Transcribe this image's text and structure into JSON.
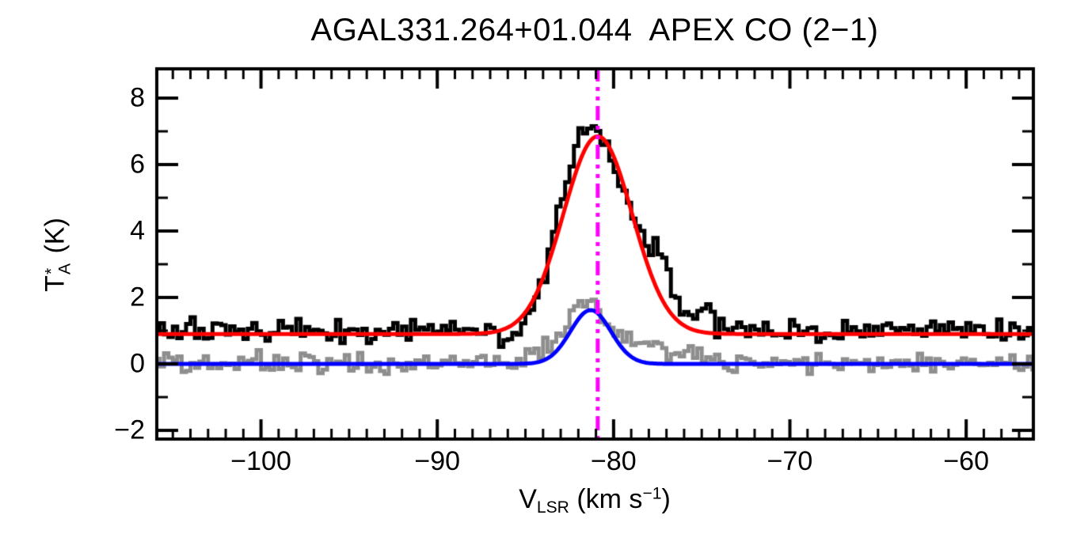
{
  "title": "AGAL331.264+01.044  APEX CO (2−1)",
  "x_axis": {
    "label_v": "V",
    "label_v_sub": "LSR",
    "label_unit_pre": " (km s",
    "label_unit_sup": "−1",
    "label_unit_post": ")"
  },
  "y_axis": {
    "label_t": "T",
    "label_t_sup": "*",
    "label_t_sub": "A",
    "label_unit": " (K)"
  },
  "chart_data": {
    "type": "line",
    "title": "AGAL331.264+01.044  APEX CO (2−1)",
    "xlabel": "V_LSR (km s−1)",
    "ylabel": "T_A* (K)",
    "xlim": [
      -106.0,
      -56.1
    ],
    "ylim": [
      -2.31,
      8.93
    ],
    "grid": false,
    "legend_position": "none",
    "background_color": "#FFFFFF",
    "axis_color": "#000000",
    "x_major_ticks": [
      {
        "value": -100,
        "label": "−100"
      },
      {
        "value": -90,
        "label": "−90"
      },
      {
        "value": -80,
        "label": "−80"
      },
      {
        "value": -70,
        "label": "−70"
      },
      {
        "value": -60,
        "label": "−60"
      }
    ],
    "y_major_ticks": [
      {
        "value": -2,
        "label": "−2"
      },
      {
        "value": 0,
        "label": "0"
      },
      {
        "value": 2,
        "label": "2"
      },
      {
        "value": 4,
        "label": "4"
      },
      {
        "value": 6,
        "label": "6"
      },
      {
        "value": 8,
        "label": "8"
      }
    ],
    "x_minor_tick_step": 1,
    "y_minor_tick_step": 1,
    "channel_width_kms": 0.25,
    "noise_seed": 12345,
    "series": [
      {
        "name": "observed-co-spectrum",
        "style": "histogram",
        "color": "#000000",
        "line_width": 5,
        "baseline_K": 1.0,
        "noise_sigma_K": 0.16,
        "peak_K": 7.3,
        "peak_velocity_kms": -81.1,
        "profile_anchors": [
          [
            -106.0,
            1.0
          ],
          [
            -96.0,
            1.0
          ],
          [
            -90.0,
            1.0
          ],
          [
            -87.0,
            1.0
          ],
          [
            -86.6,
            0.8
          ],
          [
            -86.2,
            0.55
          ],
          [
            -85.8,
            0.8
          ],
          [
            -85.2,
            1.15
          ],
          [
            -84.8,
            1.55
          ],
          [
            -84.3,
            2.2
          ],
          [
            -83.8,
            3.0
          ],
          [
            -83.3,
            4.1
          ],
          [
            -82.8,
            5.2
          ],
          [
            -82.3,
            6.2
          ],
          [
            -81.8,
            6.85
          ],
          [
            -81.4,
            7.15
          ],
          [
            -81.1,
            7.3
          ],
          [
            -80.7,
            7.0
          ],
          [
            -80.3,
            6.6
          ],
          [
            -79.9,
            6.0
          ],
          [
            -79.4,
            5.2
          ],
          [
            -78.9,
            4.4
          ],
          [
            -78.4,
            3.8
          ],
          [
            -77.9,
            3.5
          ],
          [
            -77.6,
            3.6
          ],
          [
            -77.3,
            3.4
          ],
          [
            -76.9,
            2.8
          ],
          [
            -76.5,
            2.1
          ],
          [
            -76.1,
            1.7
          ],
          [
            -75.6,
            1.5
          ],
          [
            -75.1,
            1.6
          ],
          [
            -74.6,
            1.55
          ],
          [
            -74.1,
            1.2
          ],
          [
            -73.6,
            1.1
          ],
          [
            -72.5,
            1.05
          ],
          [
            -68.0,
            1.0
          ],
          [
            -62.0,
            1.0
          ],
          [
            -56.0,
            1.0
          ]
        ]
      },
      {
        "name": "reference-spectrum",
        "style": "histogram",
        "color": "#8E8E8E",
        "line_width": 5,
        "baseline_K": 0.0,
        "noise_sigma_K": 0.15,
        "peak_K": 1.95,
        "peak_velocity_kms": -81.7,
        "profile_anchors": [
          [
            -106.0,
            0.0
          ],
          [
            -95.0,
            0.0
          ],
          [
            -88.0,
            0.0
          ],
          [
            -85.5,
            0.05
          ],
          [
            -85.0,
            0.12
          ],
          [
            -84.4,
            0.25
          ],
          [
            -83.9,
            0.45
          ],
          [
            -83.4,
            0.7
          ],
          [
            -82.9,
            1.05
          ],
          [
            -82.4,
            1.5
          ],
          [
            -82.0,
            1.8
          ],
          [
            -81.7,
            1.95
          ],
          [
            -81.3,
            1.85
          ],
          [
            -80.9,
            1.6
          ],
          [
            -80.4,
            1.25
          ],
          [
            -79.9,
            0.95
          ],
          [
            -79.4,
            0.8
          ],
          [
            -78.9,
            0.65
          ],
          [
            -78.4,
            0.55
          ],
          [
            -77.9,
            0.5
          ],
          [
            -77.4,
            0.4
          ],
          [
            -76.9,
            0.35
          ],
          [
            -76.4,
            0.3
          ],
          [
            -75.9,
            0.25
          ],
          [
            -75.4,
            0.2
          ],
          [
            -74.9,
            0.15
          ],
          [
            -74.4,
            0.1
          ],
          [
            -73.9,
            0.05
          ],
          [
            -72.0,
            0.0
          ],
          [
            -60.0,
            0.0
          ],
          [
            -56.0,
            0.0
          ]
        ]
      },
      {
        "name": "gaussian-fit-observed",
        "style": "gaussian",
        "color": "#FF0000",
        "line_width": 5,
        "baseline_K": 0.9,
        "amplitude_K": 5.95,
        "center_kms": -80.9,
        "fwhm_kms": 4.6
      },
      {
        "name": "gaussian-fit-reference",
        "style": "gaussian",
        "color": "#0000FF",
        "line_width": 5,
        "baseline_K": 0.0,
        "amplitude_K": 1.62,
        "center_kms": -81.3,
        "fwhm_kms": 2.7
      }
    ],
    "vline": {
      "name": "systemic-velocity-marker",
      "value_kms": -80.9,
      "color": "#FF00FF",
      "style": "dash-dot-dot",
      "line_width": 5
    }
  }
}
